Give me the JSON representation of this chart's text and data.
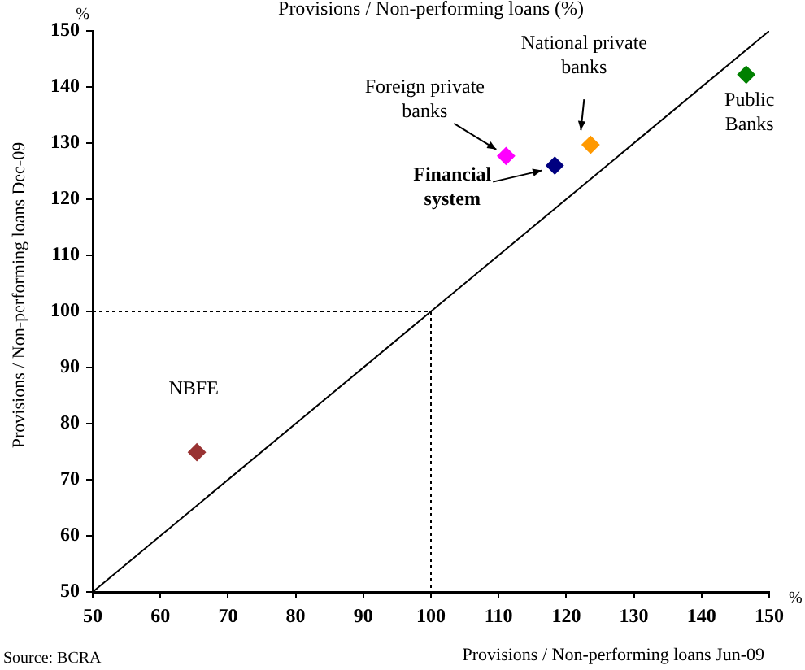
{
  "chart_data": {
    "type": "scatter",
    "title": "Provisions / Non-performing loans (%)",
    "xlabel": "Provisions / Non-performing loans Jun-09",
    "ylabel": "Provisions / Non-performing loans Dec-09",
    "annotations": [
      "%",
      "%",
      "Source: BCRA"
    ],
    "xlim": [
      50,
      150
    ],
    "xticks": [
      50,
      60,
      70,
      80,
      90,
      100,
      110,
      120,
      130,
      140,
      150
    ],
    "ylim": [
      50,
      150
    ],
    "yticks": [
      50,
      60,
      70,
      80,
      90,
      100,
      110,
      120,
      130,
      140,
      150
    ],
    "grid": false,
    "legend": false,
    "marker": "diamond",
    "series": [
      {
        "name": "Foreign private banks",
        "color": "#ff00ff",
        "x": [
          111.1
        ],
        "values": [
          127.7
        ]
      },
      {
        "name": "Financial system",
        "color": "#000080",
        "x": [
          118.3
        ],
        "values": [
          126.0
        ]
      },
      {
        "name": "National private banks",
        "color": "#ff9900",
        "x": [
          123.6
        ],
        "values": [
          129.7
        ]
      },
      {
        "name": "Public Banks",
        "color": "#008000",
        "x": [
          146.6
        ],
        "values": [
          142.2
        ]
      },
      {
        "name": "NBFE",
        "color": "#993333",
        "x": [
          65.4
        ],
        "values": [
          74.9
        ]
      },
      {
        "type": "line",
        "color": "#000000",
        "marker": "none",
        "line_style": "solid",
        "x": [
          50,
          150
        ],
        "values": [
          50,
          150
        ]
      },
      {
        "type": "line",
        "color": "#000000",
        "marker": "none",
        "line_style": "dotted",
        "x": [
          50,
          100,
          100
        ],
        "values": [
          100,
          100,
          50
        ]
      }
    ]
  }
}
